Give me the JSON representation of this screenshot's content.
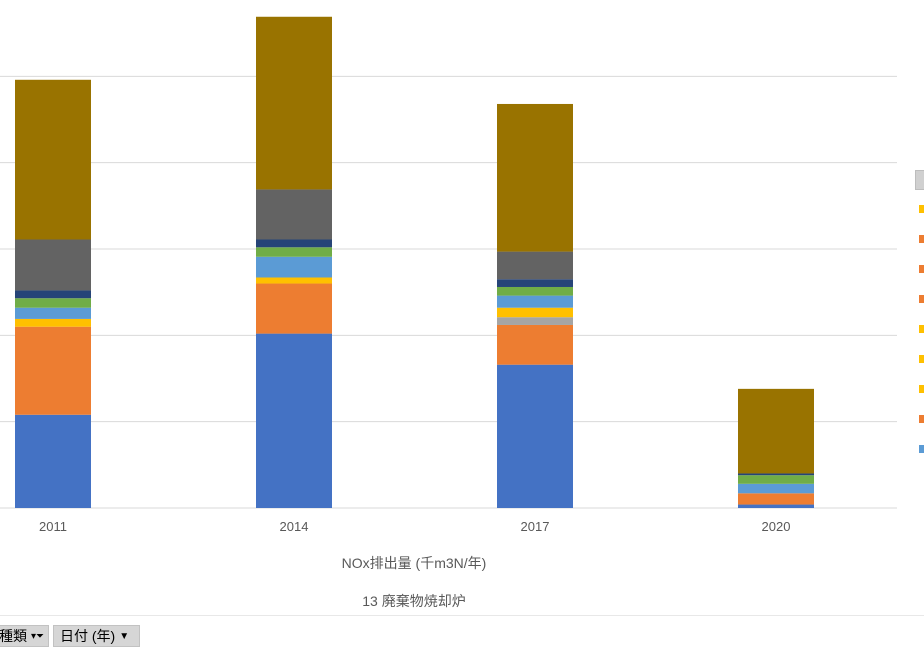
{
  "chart_data": {
    "type": "bar",
    "stacked": true,
    "categories": [
      "2011",
      "2014",
      "2017",
      "2020"
    ],
    "xlabel": "NOx排出量 (千m3N/年)",
    "axis_category": "13 廃棄物焼却炉",
    "ylim": [
      0,
      3000
    ],
    "grid": true,
    "legend_position": "right",
    "series": [
      {
        "color": "#4472c4",
        "values": [
          540,
          1010,
          830,
          20
        ]
      },
      {
        "color": "#ed7d31",
        "values": [
          510,
          290,
          230,
          65
        ]
      },
      {
        "color": "#a5a5a5",
        "values": [
          0,
          0,
          45,
          0
        ]
      },
      {
        "color": "#ffc000",
        "values": [
          45,
          35,
          55,
          0
        ]
      },
      {
        "color": "#5b9bd5",
        "values": [
          65,
          120,
          70,
          55
        ]
      },
      {
        "color": "#70ad47",
        "values": [
          55,
          55,
          50,
          50
        ]
      },
      {
        "color": "#264478",
        "values": [
          45,
          45,
          45,
          10
        ]
      },
      {
        "color": "#636363",
        "values": [
          295,
          290,
          160,
          0
        ]
      },
      {
        "color": "#997300",
        "values": [
          925,
          1000,
          855,
          490
        ]
      }
    ]
  },
  "legend": {
    "swatches": [
      "#ffc000",
      "#ed7d31",
      "#ed7d31",
      "#ed7d31",
      "#ffc000",
      "#ffc000",
      "#ffc000",
      "#ed7d31",
      "#5b9bd5"
    ]
  },
  "fields": {
    "type_label": "種類",
    "date_label": "日付 (年)"
  }
}
